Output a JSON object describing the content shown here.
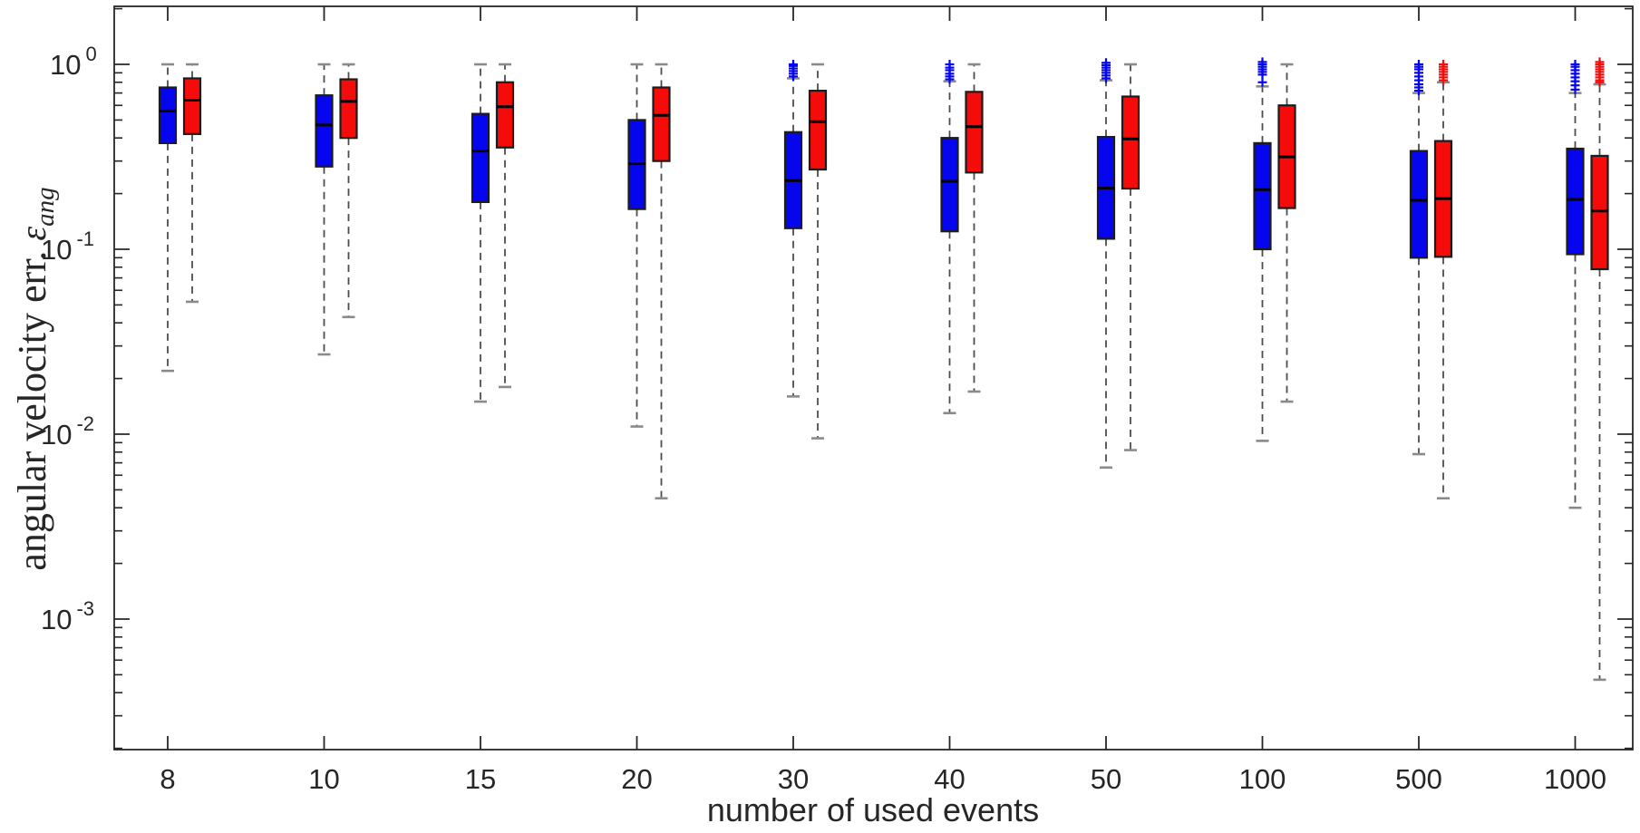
{
  "chart_data": {
    "type": "boxplot",
    "title": "",
    "xlabel": "number of used events",
    "ylabel_prefix": "angular velocity err. ",
    "ylabel_symbol": "ε",
    "ylabel_subscript": "ang",
    "yscale": "log",
    "ylim": [
      0.000197,
      2.04
    ],
    "grid": false,
    "legend": "none",
    "categories": [
      "8",
      "10",
      "15",
      "20",
      "30",
      "40",
      "50",
      "100",
      "500",
      "1000"
    ],
    "y_ticks": [
      {
        "mantissa": "10",
        "exponent": "0",
        "value": 1
      },
      {
        "mantissa": "10",
        "exponent": "-1",
        "value": 0.1
      },
      {
        "mantissa": "10",
        "exponent": "-2",
        "value": 0.01
      },
      {
        "mantissa": "10",
        "exponent": "-3",
        "value": 0.001
      }
    ],
    "colors": {
      "series_blue": "#0606ee",
      "series_red": "#f60b0b",
      "box_edge": "#1c1c1c",
      "median": "#000000",
      "whisker": "#4d4d4d",
      "whisker_cap": "#8a8a8a",
      "axis": "#262626",
      "text": "#262626"
    },
    "series": [
      {
        "name": "blue",
        "color": "#0606ee",
        "boxes": [
          {
            "category": "8",
            "whislo": 0.022,
            "q1": 0.375,
            "med": 0.56,
            "q3": 0.75,
            "whishi": 1.0,
            "outliers": []
          },
          {
            "category": "10",
            "whislo": 0.027,
            "q1": 0.28,
            "med": 0.47,
            "q3": 0.68,
            "whishi": 1.0,
            "outliers": []
          },
          {
            "category": "15",
            "whislo": 0.015,
            "q1": 0.18,
            "med": 0.34,
            "q3": 0.54,
            "whishi": 1.0,
            "outliers": []
          },
          {
            "category": "20",
            "whislo": 0.011,
            "q1": 0.165,
            "med": 0.29,
            "q3": 0.5,
            "whishi": 1.0,
            "outliers": []
          },
          {
            "category": "30",
            "whislo": 0.016,
            "q1": 0.13,
            "med": 0.235,
            "q3": 0.43,
            "whishi": 0.84,
            "outliers": [
              0.86,
              0.89,
              0.92,
              0.95,
              0.98,
              1.0
            ]
          },
          {
            "category": "40",
            "whislo": 0.013,
            "q1": 0.125,
            "med": 0.233,
            "q3": 0.4,
            "whishi": 0.81,
            "outliers": [
              0.83,
              0.86,
              0.89,
              0.93,
              0.96,
              1.0
            ]
          },
          {
            "category": "50",
            "whislo": 0.0066,
            "q1": 0.114,
            "med": 0.214,
            "q3": 0.405,
            "whishi": 0.82,
            "outliers": [
              0.84,
              0.87,
              0.9,
              0.93,
              0.96,
              0.99,
              1.02
            ]
          },
          {
            "category": "100",
            "whislo": 0.0092,
            "q1": 0.1,
            "med": 0.21,
            "q3": 0.375,
            "whishi": 0.76,
            "outliers": [
              0.8,
              0.88,
              0.91,
              0.94,
              0.97,
              1.0,
              1.03
            ]
          },
          {
            "category": "500",
            "whislo": 0.0078,
            "q1": 0.09,
            "med": 0.184,
            "q3": 0.34,
            "whishi": 0.7,
            "outliers": [
              0.72,
              0.75,
              0.78,
              0.82,
              0.86,
              0.9,
              0.94,
              0.97,
              1.0
            ]
          },
          {
            "category": "1000",
            "whislo": 0.004,
            "q1": 0.094,
            "med": 0.186,
            "q3": 0.35,
            "whishi": 0.7,
            "outliers": [
              0.73,
              0.77,
              0.81,
              0.85,
              0.89,
              0.93,
              0.97,
              1.0
            ]
          }
        ]
      },
      {
        "name": "red",
        "color": "#f60b0b",
        "boxes": [
          {
            "category": "8",
            "whislo": 0.052,
            "q1": 0.42,
            "med": 0.64,
            "q3": 0.84,
            "whishi": 1.0,
            "outliers": []
          },
          {
            "category": "10",
            "whislo": 0.043,
            "q1": 0.4,
            "med": 0.63,
            "q3": 0.83,
            "whishi": 1.0,
            "outliers": []
          },
          {
            "category": "15",
            "whislo": 0.018,
            "q1": 0.355,
            "med": 0.59,
            "q3": 0.8,
            "whishi": 1.0,
            "outliers": []
          },
          {
            "category": "20",
            "whislo": 0.0045,
            "q1": 0.3,
            "med": 0.53,
            "q3": 0.75,
            "whishi": 1.0,
            "outliers": []
          },
          {
            "category": "30",
            "whislo": 0.0095,
            "q1": 0.27,
            "med": 0.49,
            "q3": 0.72,
            "whishi": 1.0,
            "outliers": []
          },
          {
            "category": "40",
            "whislo": 0.017,
            "q1": 0.26,
            "med": 0.46,
            "q3": 0.71,
            "whishi": 1.0,
            "outliers": []
          },
          {
            "category": "50",
            "whislo": 0.0082,
            "q1": 0.213,
            "med": 0.395,
            "q3": 0.67,
            "whishi": 1.0,
            "outliers": []
          },
          {
            "category": "100",
            "whislo": 0.015,
            "q1": 0.167,
            "med": 0.316,
            "q3": 0.6,
            "whishi": 1.0,
            "outliers": []
          },
          {
            "category": "500",
            "whislo": 0.0045,
            "q1": 0.091,
            "med": 0.188,
            "q3": 0.385,
            "whishi": 0.8,
            "outliers": [
              0.82,
              0.85,
              0.88,
              0.91,
              0.94,
              0.97,
              1.0
            ]
          },
          {
            "category": "1000",
            "whislo": 0.00047,
            "q1": 0.078,
            "med": 0.161,
            "q3": 0.32,
            "whishi": 0.78,
            "outliers": [
              0.8,
              0.82,
              0.85,
              0.88,
              0.91,
              0.94,
              0.97,
              1.0,
              1.03
            ]
          }
        ]
      }
    ]
  }
}
